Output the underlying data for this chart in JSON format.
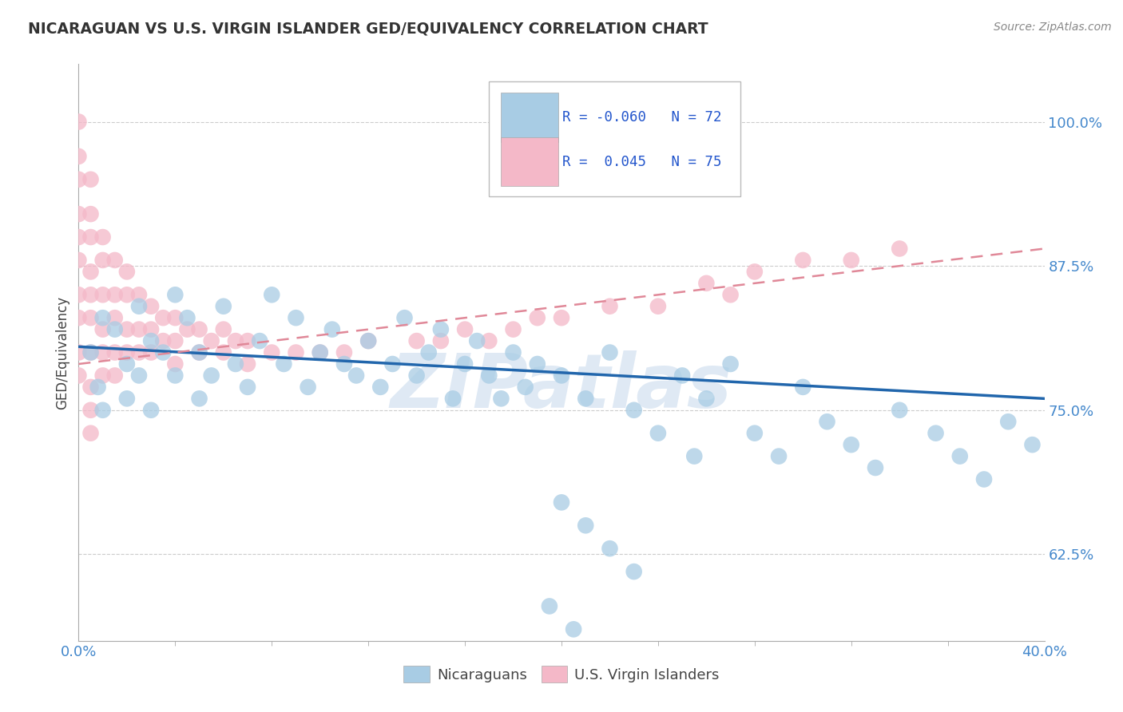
{
  "title": "NICARAGUAN VS U.S. VIRGIN ISLANDER GED/EQUIVALENCY CORRELATION CHART",
  "source": "Source: ZipAtlas.com",
  "ylabel": "GED/Equivalency",
  "yticks": [
    0.625,
    0.75,
    0.875,
    1.0
  ],
  "ytick_labels": [
    "62.5%",
    "75.0%",
    "87.5%",
    "100.0%"
  ],
  "xlim": [
    0.0,
    0.4
  ],
  "ylim": [
    0.55,
    1.05
  ],
  "legend_r_blue": "-0.060",
  "legend_n_blue": "72",
  "legend_r_pink": "0.045",
  "legend_n_pink": "75",
  "legend_label_blue": "Nicaraguans",
  "legend_label_pink": "U.S. Virgin Islanders",
  "blue_color": "#a8cce4",
  "pink_color": "#f4b8c8",
  "blue_line_color": "#2166ac",
  "pink_line_color": "#e08898",
  "title_color": "#333333",
  "axis_label_color": "#444444",
  "tick_color": "#4488cc",
  "source_color": "#888888",
  "blue_scatter_x": [
    0.005,
    0.008,
    0.01,
    0.01,
    0.015,
    0.02,
    0.02,
    0.025,
    0.025,
    0.03,
    0.03,
    0.035,
    0.04,
    0.04,
    0.045,
    0.05,
    0.05,
    0.055,
    0.06,
    0.065,
    0.07,
    0.075,
    0.08,
    0.085,
    0.09,
    0.095,
    0.1,
    0.105,
    0.11,
    0.115,
    0.12,
    0.125,
    0.13,
    0.135,
    0.14,
    0.145,
    0.15,
    0.155,
    0.16,
    0.165,
    0.17,
    0.175,
    0.18,
    0.185,
    0.19,
    0.2,
    0.21,
    0.22,
    0.23,
    0.24,
    0.25,
    0.255,
    0.26,
    0.27,
    0.28,
    0.29,
    0.3,
    0.31,
    0.32,
    0.33,
    0.34,
    0.355,
    0.365,
    0.375,
    0.385,
    0.395,
    0.2,
    0.21,
    0.22,
    0.23,
    0.195,
    0.205
  ],
  "blue_scatter_y": [
    0.8,
    0.77,
    0.83,
    0.75,
    0.82,
    0.79,
    0.76,
    0.84,
    0.78,
    0.81,
    0.75,
    0.8,
    0.85,
    0.78,
    0.83,
    0.8,
    0.76,
    0.78,
    0.84,
    0.79,
    0.77,
    0.81,
    0.85,
    0.79,
    0.83,
    0.77,
    0.8,
    0.82,
    0.79,
    0.78,
    0.81,
    0.77,
    0.79,
    0.83,
    0.78,
    0.8,
    0.82,
    0.76,
    0.79,
    0.81,
    0.78,
    0.76,
    0.8,
    0.77,
    0.79,
    0.78,
    0.76,
    0.8,
    0.75,
    0.73,
    0.78,
    0.71,
    0.76,
    0.79,
    0.73,
    0.71,
    0.77,
    0.74,
    0.72,
    0.7,
    0.75,
    0.73,
    0.71,
    0.69,
    0.74,
    0.72,
    0.67,
    0.65,
    0.63,
    0.61,
    0.58,
    0.56
  ],
  "pink_scatter_x": [
    0.0,
    0.0,
    0.0,
    0.0,
    0.0,
    0.0,
    0.0,
    0.0,
    0.0,
    0.0,
    0.005,
    0.005,
    0.005,
    0.005,
    0.005,
    0.005,
    0.005,
    0.01,
    0.01,
    0.01,
    0.01,
    0.01,
    0.01,
    0.015,
    0.015,
    0.015,
    0.015,
    0.015,
    0.02,
    0.02,
    0.02,
    0.02,
    0.025,
    0.025,
    0.025,
    0.03,
    0.03,
    0.03,
    0.035,
    0.035,
    0.04,
    0.04,
    0.04,
    0.045,
    0.05,
    0.05,
    0.055,
    0.06,
    0.06,
    0.065,
    0.07,
    0.07,
    0.08,
    0.09,
    0.1,
    0.11,
    0.12,
    0.14,
    0.15,
    0.16,
    0.17,
    0.18,
    0.19,
    0.2,
    0.22,
    0.24,
    0.26,
    0.27,
    0.28,
    0.3,
    0.32,
    0.34,
    0.005,
    0.005,
    0.005
  ],
  "pink_scatter_y": [
    1.0,
    0.97,
    0.95,
    0.92,
    0.9,
    0.88,
    0.85,
    0.83,
    0.8,
    0.78,
    0.95,
    0.92,
    0.9,
    0.87,
    0.85,
    0.83,
    0.8,
    0.9,
    0.88,
    0.85,
    0.82,
    0.8,
    0.78,
    0.88,
    0.85,
    0.83,
    0.8,
    0.78,
    0.87,
    0.85,
    0.82,
    0.8,
    0.85,
    0.82,
    0.8,
    0.84,
    0.82,
    0.8,
    0.83,
    0.81,
    0.83,
    0.81,
    0.79,
    0.82,
    0.82,
    0.8,
    0.81,
    0.82,
    0.8,
    0.81,
    0.81,
    0.79,
    0.8,
    0.8,
    0.8,
    0.8,
    0.81,
    0.81,
    0.81,
    0.82,
    0.81,
    0.82,
    0.83,
    0.83,
    0.84,
    0.84,
    0.86,
    0.85,
    0.87,
    0.88,
    0.88,
    0.89,
    0.77,
    0.75,
    0.73
  ],
  "watermark_zip": "ZIP",
  "watermark_atlas": "atlas",
  "background_color": "#ffffff",
  "grid_color": "#cccccc",
  "blue_trend_x": [
    0.0,
    0.4
  ],
  "blue_trend_y": [
    0.805,
    0.76
  ],
  "pink_trend_x": [
    0.0,
    0.4
  ],
  "pink_trend_y": [
    0.79,
    0.89
  ]
}
